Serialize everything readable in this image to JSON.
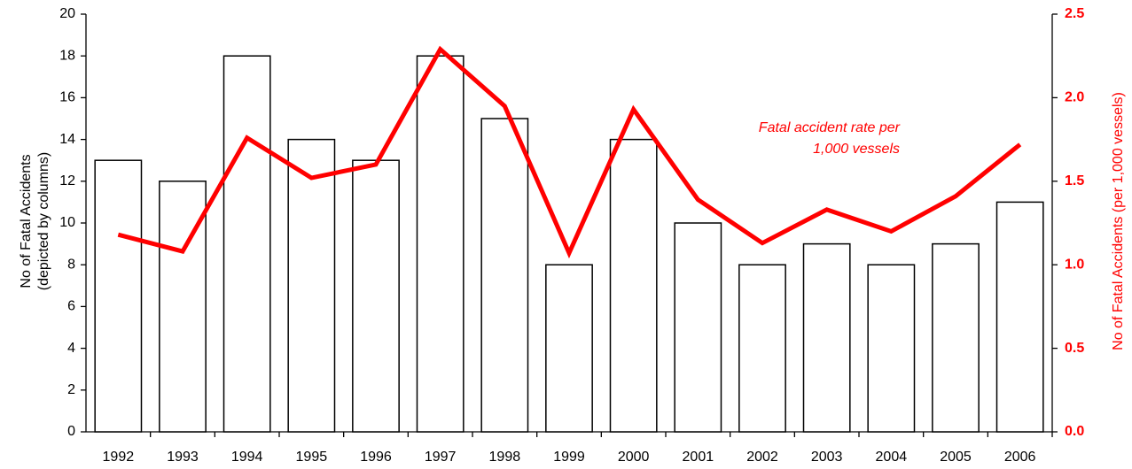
{
  "chart_data": {
    "type": "combo",
    "categories": [
      "1992",
      "1993",
      "1994",
      "1995",
      "1996",
      "1997",
      "1998",
      "1999",
      "2000",
      "2001",
      "2002",
      "2003",
      "2004",
      "2005",
      "2006"
    ],
    "series": [
      {
        "type": "bar",
        "color": "#ffffff",
        "values": [
          13,
          12,
          18,
          14,
          13,
          18,
          15,
          8,
          14,
          10,
          8,
          9,
          8,
          9,
          11
        ]
      },
      {
        "type": "line",
        "axis": "y2",
        "color": "#ff0000",
        "values": [
          1.18,
          1.08,
          1.76,
          1.52,
          1.6,
          2.29,
          1.95,
          1.07,
          1.93,
          1.39,
          1.13,
          1.33,
          1.2,
          1.41,
          1.72
        ]
      }
    ],
    "ylabel": [
      "No of Fatal Accidents",
      "(depicted by columns)"
    ],
    "y2label": "No of Fatal Accidents (per 1,000 vessels)",
    "annotation": [
      "Fatal accident rate per",
      "1,000 vessels"
    ],
    "ylim": [
      0,
      20
    ],
    "yticks": [
      0,
      2,
      4,
      6,
      8,
      10,
      12,
      14,
      16,
      18,
      20
    ],
    "y2lim": [
      0,
      2.5
    ],
    "y2ticks": [
      {
        "value": 0,
        "label": "0.0"
      },
      {
        "value": 0.5,
        "label": "0.5"
      },
      {
        "value": 1,
        "label": "1.0"
      },
      {
        "value": 1.5,
        "label": "1.5"
      },
      {
        "value": 2,
        "label": "2.0"
      },
      {
        "value": 2.5,
        "label": "2.5"
      }
    ],
    "grid": false
  }
}
